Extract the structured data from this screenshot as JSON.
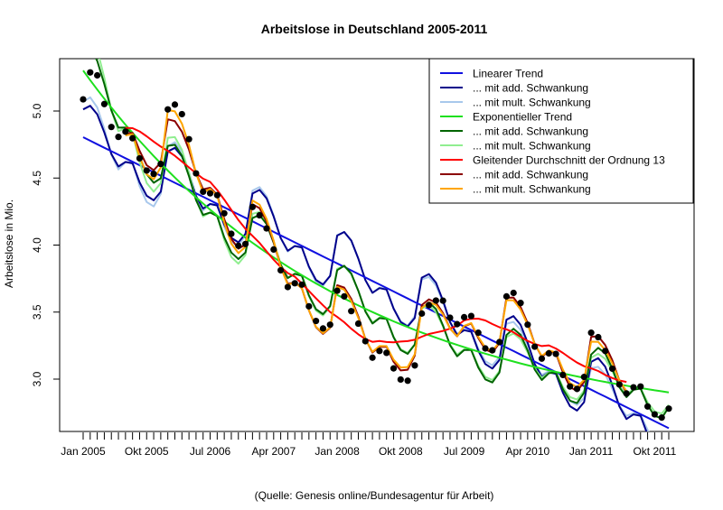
{
  "chart_data": {
    "type": "line",
    "title": "Arbeitslose in Deutschland 2005-2011",
    "ylabel": "Arbeitslose in Mio.",
    "xlabel": "",
    "caption": "(Quelle: Genesis online/Bundesagentur für Arbeit)",
    "ylim": [
      2.61,
      5.39
    ],
    "y_ticks": [
      "3.0",
      "3.5",
      "4.0",
      "4.5",
      "5.0"
    ],
    "x_tick_labels": [
      "Jan 2005",
      "Okt 2005",
      "Jul 2006",
      "Apr 2007",
      "Jan 2008",
      "Okt 2008",
      "Jul 2009",
      "Apr 2010",
      "Jan 2011",
      "Okt 2011"
    ],
    "x_start": "Jan 2005",
    "x_end": "Dez 2011",
    "grid": false,
    "legend_position": "top-right",
    "observations": [
      5.087,
      5.288,
      5.266,
      5.052,
      4.881,
      4.807,
      4.846,
      4.797,
      4.647,
      4.556,
      4.531,
      4.605,
      5.012,
      5.048,
      4.977,
      4.79,
      4.535,
      4.398,
      4.386,
      4.372,
      4.237,
      4.084,
      3.995,
      4.008,
      4.284,
      4.222,
      4.124,
      3.967,
      3.812,
      3.687,
      3.715,
      3.705,
      3.543,
      3.434,
      3.378,
      3.406,
      3.659,
      3.617,
      3.507,
      3.414,
      3.283,
      3.16,
      3.21,
      3.196,
      3.08,
      2.997,
      2.988,
      3.102,
      3.489,
      3.552,
      3.586,
      3.585,
      3.458,
      3.41,
      3.462,
      3.471,
      3.346,
      3.229,
      3.215,
      3.276,
      3.617,
      3.643,
      3.568,
      3.406,
      3.242,
      3.153,
      3.192,
      3.188,
      3.031,
      2.945,
      2.927,
      3.016,
      3.346,
      3.313,
      3.21,
      3.078,
      2.96,
      2.893,
      2.939,
      2.945,
      2.796,
      2.737,
      2.713,
      2.78
    ],
    "series": [
      {
        "name": "Linearer Trend",
        "color": "#1010e0",
        "method": "linear"
      },
      {
        "name": "... mit add. Schwankung",
        "color": "#00008b",
        "method": "linear-add"
      },
      {
        "name": "... mit mult. Schwankung",
        "color": "#a8c8ec",
        "method": "linear-mult"
      },
      {
        "name": "Exponentieller Trend",
        "color": "#1ee01e",
        "method": "exp"
      },
      {
        "name": "... mit add. Schwankung",
        "color": "#006400",
        "method": "exp-add"
      },
      {
        "name": "... mit mult. Schwankung",
        "color": "#90ee90",
        "method": "exp-mult"
      },
      {
        "name": "Gleitender Durchschnitt der Ordnung 13",
        "color": "#ff0000",
        "method": "ma"
      },
      {
        "name": "... mit add. Schwankung",
        "color": "#8b0000",
        "method": "ma-add"
      },
      {
        "name": "... mit mult. Schwankung",
        "color": "#ffa500",
        "method": "ma-mult"
      }
    ]
  }
}
